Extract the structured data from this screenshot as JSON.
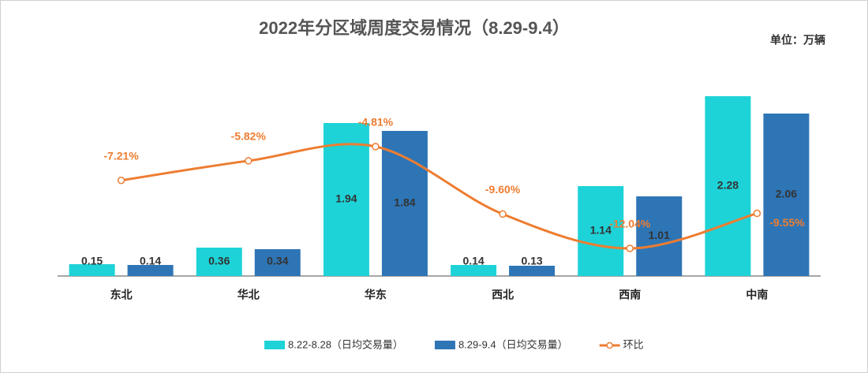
{
  "chart_data": {
    "type": "bar",
    "title": "2022年分区域周度交易情况（8.29-9.4）",
    "unit_label": "单位：万辆",
    "categories": [
      "东北",
      "华北",
      "华东",
      "西北",
      "西南",
      "中南"
    ],
    "series": [
      {
        "name": "8.22-8.28（日均交易量）",
        "color": "#1dd3d8",
        "values": [
          0.15,
          0.36,
          1.94,
          0.14,
          1.14,
          2.28
        ]
      },
      {
        "name": "8.29-9.4（日均交易量）",
        "color": "#2e75b6",
        "values": [
          0.14,
          0.34,
          1.84,
          0.13,
          1.01,
          2.06
        ]
      },
      {
        "name": "环比",
        "color": "#ed7d31",
        "type": "line",
        "axis": "y2",
        "values": [
          -7.21,
          -5.82,
          -4.81,
          -9.6,
          -12.04,
          -9.55
        ],
        "value_labels": [
          "-7.21%",
          "-5.82%",
          "-4.81%",
          "-9.60%",
          "-12.04%",
          "-9.55%"
        ]
      }
    ],
    "ylim": [
      0,
      2.5
    ],
    "y2lim": [
      -14,
      0
    ]
  }
}
